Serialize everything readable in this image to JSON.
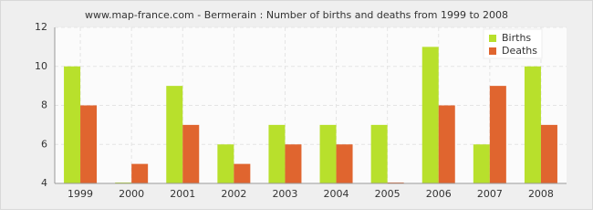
{
  "chart_data": {
    "type": "bar",
    "title": "www.map-france.com - Bermerain : Number of births and deaths from 1999 to 2008",
    "categories": [
      "1999",
      "2000",
      "2001",
      "2002",
      "2003",
      "2004",
      "2005",
      "2006",
      "2007",
      "2008"
    ],
    "series": [
      {
        "name": "Births",
        "color": "#b8e02c",
        "values": [
          10,
          4,
          9,
          6,
          7,
          7,
          7,
          11,
          6,
          10
        ]
      },
      {
        "name": "Deaths",
        "color": "#e0652f",
        "values": [
          8,
          5,
          7,
          5,
          6,
          6,
          4,
          8,
          9,
          7
        ]
      }
    ],
    "ylim": [
      4,
      12
    ],
    "yticks": [
      4,
      6,
      8,
      10,
      12
    ],
    "grid": true,
    "legend": "top-right"
  }
}
